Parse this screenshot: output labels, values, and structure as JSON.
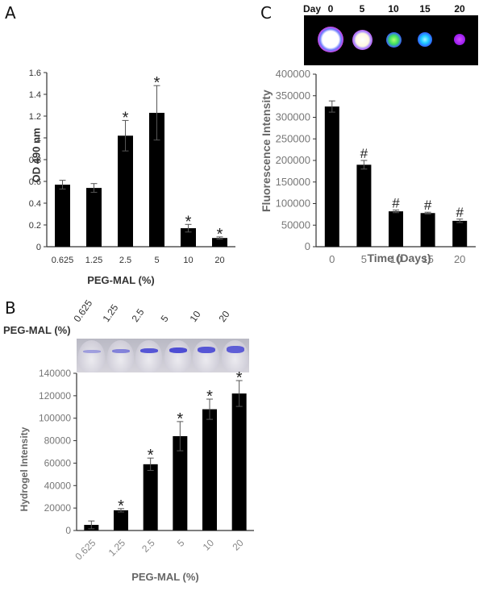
{
  "panels": {
    "A": {
      "label": "A"
    },
    "B": {
      "label": "B",
      "image_row_label": "PEG-MAL (%)",
      "image_col_labels": [
        "0.625",
        "1.25",
        "2.5",
        "5",
        "10",
        "20"
      ]
    },
    "C": {
      "label": "C",
      "image_row_label": "Day",
      "image_col_labels": [
        "0",
        "5",
        "10",
        "15",
        "20"
      ]
    }
  },
  "colors": {
    "bar": "#000000",
    "axis": "#333333",
    "tick_text_gray": "#777777",
    "image_bg_black": "#000000",
    "well_dye": "#2a2ad0"
  },
  "chart_data": [
    {
      "id": "A",
      "type": "bar",
      "title": "",
      "categories": [
        "0.625",
        "1.25",
        "2.5",
        "5",
        "10",
        "20"
      ],
      "values": [
        0.57,
        0.54,
        1.02,
        1.23,
        0.17,
        0.08
      ],
      "errors": [
        0.04,
        0.04,
        0.14,
        0.25,
        0.035,
        0.01
      ],
      "significance": [
        "",
        "",
        "*",
        "*",
        "*",
        "*"
      ],
      "xlabel": "PEG-MAL (%)",
      "ylabel": "OD 490 nm",
      "ylim": [
        0,
        1.6
      ],
      "yticks": [
        "0",
        "0.2",
        "0.4",
        "0.6",
        "0.8",
        "1",
        "1.2",
        "1.4",
        "1.6"
      ],
      "grid": false
    },
    {
      "id": "B",
      "type": "bar",
      "title": "",
      "categories": [
        "0.625",
        "1.25",
        "2.5",
        "5",
        "10",
        "20"
      ],
      "values": [
        5000,
        18000,
        59000,
        84000,
        108000,
        122000
      ],
      "errors": [
        3500,
        1500,
        5500,
        13000,
        9000,
        11500
      ],
      "significance": [
        "",
        "*",
        "*",
        "*",
        "*",
        "*"
      ],
      "xlabel": "PEG-MAL (%)",
      "ylabel": "Hydrogel Intensity",
      "ylim": [
        0,
        140000
      ],
      "yticks": [
        "0",
        "20000",
        "40000",
        "60000",
        "80000",
        "100000",
        "120000",
        "140000"
      ],
      "grid": false
    },
    {
      "id": "C",
      "type": "bar",
      "title": "",
      "categories": [
        "0",
        "5",
        "10",
        "15",
        "20"
      ],
      "values": [
        325000,
        190000,
        82000,
        78000,
        60000
      ],
      "errors": [
        13000,
        10000,
        3000,
        2000,
        4000
      ],
      "significance": [
        "",
        "#",
        "#",
        "#",
        "#"
      ],
      "xlabel": "Time (Days)",
      "ylabel": "Fluorescence Intensity",
      "ylim": [
        0,
        400000
      ],
      "yticks": [
        "0",
        "50000",
        "100000",
        "150000",
        "200000",
        "250000",
        "300000",
        "350000",
        "400000"
      ],
      "grid": false
    }
  ]
}
